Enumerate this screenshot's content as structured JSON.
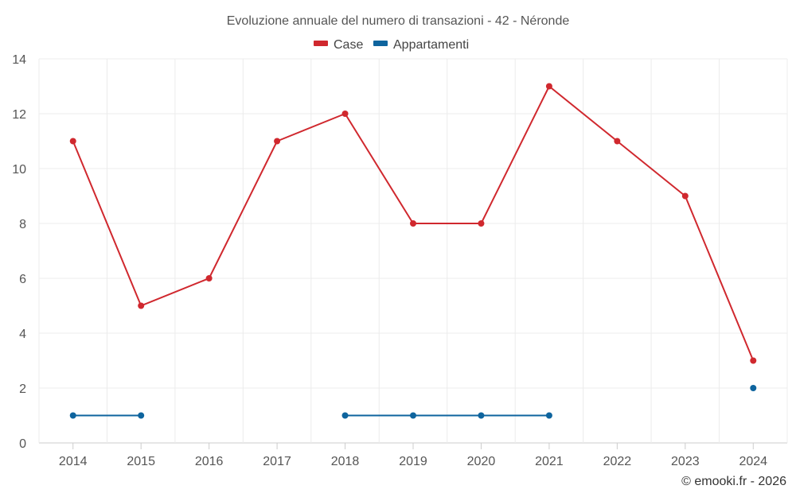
{
  "chart_data": {
    "type": "line",
    "title": "Evoluzione annuale del numero di transazioni - 42 - Néronde",
    "categories": [
      "2014",
      "2015",
      "2016",
      "2017",
      "2018",
      "2019",
      "2020",
      "2021",
      "2022",
      "2023",
      "2024"
    ],
    "series": [
      {
        "name": "Case",
        "color": "#d0282e",
        "values": [
          11,
          5,
          6,
          11,
          12,
          8,
          8,
          13,
          11,
          9,
          3
        ]
      },
      {
        "name": "Appartamenti",
        "color": "#0e649e",
        "values": [
          1,
          1,
          null,
          null,
          1,
          1,
          1,
          1,
          null,
          null,
          2
        ]
      }
    ],
    "ylim": [
      0,
      14
    ],
    "yticks": [
      "0",
      "2",
      "4",
      "6",
      "8",
      "10",
      "12",
      "14"
    ],
    "grid": true,
    "legend": "top-center",
    "xlabel": "",
    "ylabel": ""
  },
  "credit": "© emooki.fr - 2026"
}
